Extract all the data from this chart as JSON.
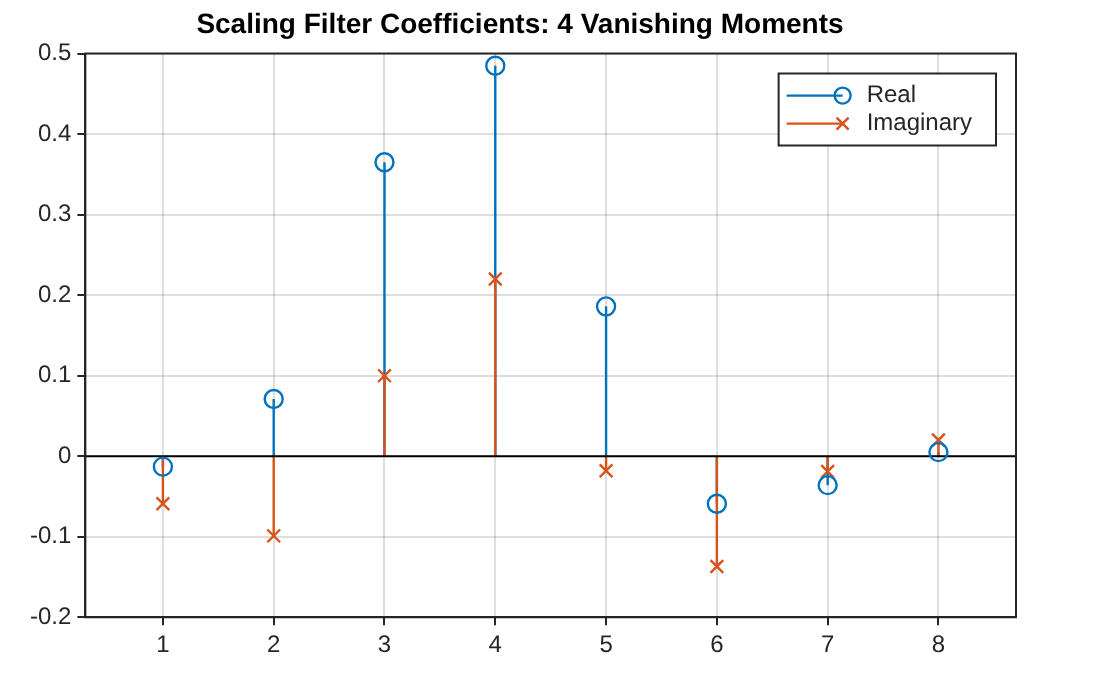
{
  "chart_data": {
    "type": "lollipop",
    "title": "Scaling Filter Coefficients: 4 Vanishing Moments",
    "x": [
      1,
      2,
      3,
      4,
      5,
      6,
      7,
      8
    ],
    "series": [
      {
        "name": "Real",
        "color": "#0072bd",
        "marker": "circle",
        "values": [
          -0.013,
          0.071,
          0.365,
          0.485,
          0.186,
          -0.059,
          -0.036,
          0.005
        ]
      },
      {
        "name": "Imaginary",
        "color": "#d95319",
        "marker": "cross",
        "values": [
          -0.059,
          -0.099,
          0.1,
          0.22,
          -0.018,
          -0.137,
          -0.019,
          0.02
        ]
      }
    ],
    "xlim": [
      0.3,
      8.7
    ],
    "xticks": [
      1,
      2,
      3,
      4,
      5,
      6,
      7,
      8
    ],
    "ylim": [
      -0.2,
      0.5
    ],
    "yticks": [
      -0.2,
      -0.1,
      0,
      0.1,
      0.2,
      0.3,
      0.4,
      0.5
    ],
    "grid": true,
    "legend": "top right"
  }
}
